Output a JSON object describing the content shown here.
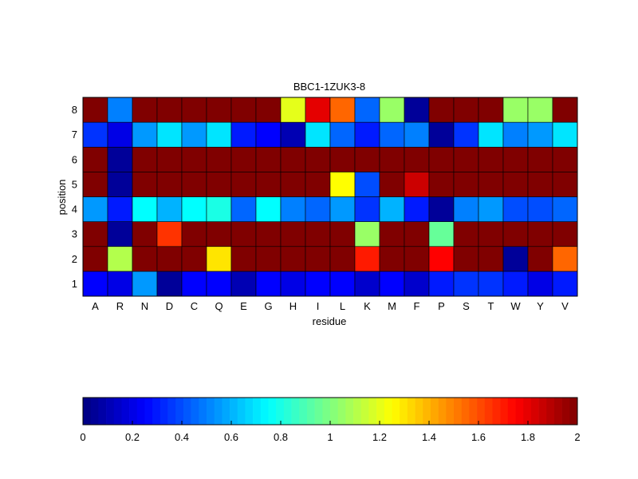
{
  "chart_data": {
    "type": "heatmap",
    "title": "BBC1-1ZUK3-8",
    "xlabel": "residue",
    "ylabel": "position",
    "x": [
      "A",
      "R",
      "N",
      "D",
      "C",
      "Q",
      "E",
      "G",
      "H",
      "I",
      "L",
      "K",
      "M",
      "F",
      "P",
      "S",
      "T",
      "W",
      "Y",
      "V"
    ],
    "y": [
      "1",
      "2",
      "3",
      "4",
      "5",
      "6",
      "7",
      "8"
    ],
    "values": [
      [
        0.25,
        0.2,
        0.55,
        0.05,
        0.25,
        0.25,
        0.1,
        0.25,
        0.2,
        0.25,
        0.25,
        0.15,
        0.25,
        0.15,
        0.3,
        0.35,
        0.35,
        0.3,
        0.2,
        0.3
      ],
      [
        2.0,
        1.1,
        2.0,
        2.0,
        2.0,
        1.3,
        2.0,
        2.0,
        2.0,
        2.0,
        2.0,
        1.7,
        2.0,
        2.0,
        1.75,
        2.0,
        2.0,
        0.05,
        2.0,
        1.55
      ],
      [
        2.0,
        0.05,
        2.0,
        1.65,
        2.0,
        2.0,
        2.0,
        2.0,
        2.0,
        2.0,
        2.0,
        1.05,
        2.0,
        2.0,
        0.95,
        2.0,
        2.0,
        2.0,
        2.0,
        2.0
      ],
      [
        0.55,
        0.3,
        0.75,
        0.6,
        0.75,
        0.8,
        0.45,
        0.75,
        0.5,
        0.45,
        0.55,
        0.35,
        0.6,
        0.3,
        0.05,
        0.5,
        0.55,
        0.4,
        0.4,
        0.45
      ],
      [
        2.0,
        0.05,
        2.0,
        2.0,
        2.0,
        2.0,
        2.0,
        2.0,
        2.0,
        2.0,
        1.25,
        0.4,
        2.0,
        1.85,
        2.0,
        2.0,
        2.0,
        2.0,
        2.0,
        2.0
      ],
      [
        2.0,
        0.05,
        2.0,
        2.0,
        2.0,
        2.0,
        2.0,
        2.0,
        2.0,
        2.0,
        2.0,
        2.0,
        2.0,
        2.0,
        2.0,
        2.0,
        2.0,
        2.0,
        2.0,
        2.0
      ],
      [
        0.35,
        0.2,
        0.55,
        0.7,
        0.55,
        0.7,
        0.3,
        0.25,
        0.1,
        0.7,
        0.45,
        0.3,
        0.45,
        0.5,
        0.05,
        0.35,
        0.7,
        0.5,
        0.55,
        0.7
      ],
      [
        2.0,
        0.5,
        2.0,
        2.0,
        2.0,
        2.0,
        2.0,
        2.0,
        1.2,
        1.8,
        1.55,
        0.45,
        1.05,
        0.05,
        2.0,
        2.0,
        2.0,
        1.05,
        1.05,
        2.0
      ]
    ],
    "colorbar": {
      "min": 0,
      "max": 2,
      "ticks": [
        "0",
        "0.2",
        "0.4",
        "0.6",
        "0.8",
        "1",
        "1.2",
        "1.4",
        "1.6",
        "1.8",
        "2"
      ],
      "colormap": "jet",
      "placement": "bottom"
    },
    "grid": true
  }
}
